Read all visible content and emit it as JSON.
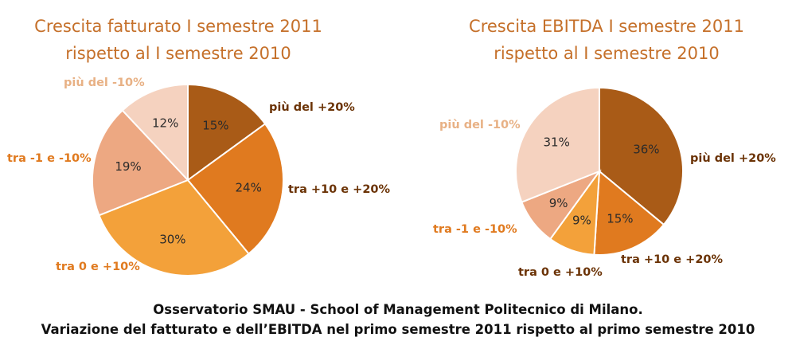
{
  "colors": {
    "title": "#c5702a",
    "label_dark": "#6b3306",
    "label_orange": "#e07a1f",
    "label_light": "#e8b185",
    "slice_outline": "#ffffff"
  },
  "chart_data": [
    {
      "type": "pie",
      "title": [
        "Crescita fatturato I semestre 2011",
        "rispetto al I semestre 2010"
      ],
      "slices": [
        {
          "label": "più del +20%",
          "value": 15,
          "display": "15%",
          "color": "#a95b17",
          "label_color": "#6b3306"
        },
        {
          "label": "tra +10 e +20%",
          "value": 24,
          "display": "24%",
          "color": "#e07a1f",
          "label_color": "#6b3306"
        },
        {
          "label": "tra 0 e +10%",
          "value": 30,
          "display": "30%",
          "color": "#f3a13a",
          "label_color": "#e07a1f"
        },
        {
          "label": "tra -1 e -10%",
          "value": 19,
          "display": "19%",
          "color": "#eda882",
          "label_color": "#e07a1f"
        },
        {
          "label": "più del -10%",
          "value": 12,
          "display": "12%",
          "color": "#f5d2bf",
          "label_color": "#e8b185"
        }
      ]
    },
    {
      "type": "pie",
      "title": [
        "Crescita EBITDA I semestre 2011",
        "rispetto al I semestre 2010"
      ],
      "slices": [
        {
          "label": "più del +20%",
          "value": 36,
          "display": "36%",
          "color": "#a95b17",
          "label_color": "#6b3306"
        },
        {
          "label": "tra +10 e +20%",
          "value": 15,
          "display": "15%",
          "color": "#e07a1f",
          "label_color": "#6b3306"
        },
        {
          "label": "tra 0 e +10%",
          "value": 9,
          "display": "9%",
          "color": "#f3a13a",
          "label_color": "#6b3306"
        },
        {
          "label": "tra -1 e -10%",
          "value": 9,
          "display": "9%",
          "color": "#eda882",
          "label_color": "#e07a1f"
        },
        {
          "label": "più del -10%",
          "value": 31,
          "display": "31%",
          "color": "#f5d2bf",
          "label_color": "#e8b185"
        }
      ]
    }
  ],
  "caption": {
    "line1": "Osservatorio SMAU - School of Management Politecnico di Milano.",
    "line2": "Variazione del fatturato e dell’EBITDA nel primo semestre 2011 rispetto al primo semestre 2010"
  }
}
